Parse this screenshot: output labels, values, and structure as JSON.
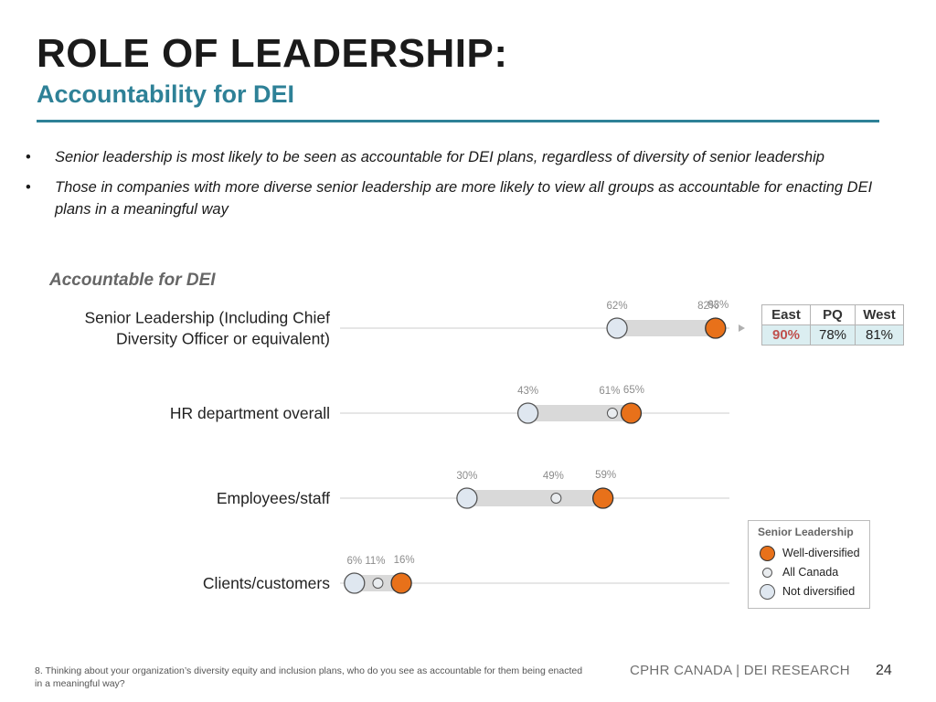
{
  "header": {
    "title": "ROLE OF LEADERSHIP:",
    "subtitle": "Accountability for DEI"
  },
  "bullets": [
    "Senior leadership is most likely to be seen as accountable for DEI plans, regardless of diversity of senior leadership",
    "Those in companies with more diverse senior leadership are more likely to view all groups as accountable for enacting DEI plans in a meaningful way"
  ],
  "colors": {
    "title": "#1a1a1a",
    "accent": "#2e8197",
    "well_diversified": "#e8711a",
    "not_diversified": "#dfe7f0",
    "all_canada": "#e9ecef",
    "range_bar": "#d9d9d9",
    "axis_line": "#cccccc",
    "highlight": "#c0504d",
    "table_fill": "#dbeef1"
  },
  "chart_data": {
    "type": "dumbbell",
    "title": "Accountable for DEI",
    "xlabel": "",
    "ylabel": "",
    "xlim": [
      0,
      100
    ],
    "unit": "%",
    "categories": [
      "Senior Leadership (Including Chief Diversity Officer or equivalent)",
      "HR department overall",
      "Employees/staff",
      "Clients/customers"
    ],
    "category_lines": [
      [
        "Senior Leadership (Including Chief",
        "Diversity Officer or equivalent)"
      ],
      [
        "HR department overall"
      ],
      [
        "Employees/staff"
      ],
      [
        "Clients/customers"
      ]
    ],
    "series": [
      {
        "key": "not",
        "name": "Not diversified",
        "values": [
          62,
          43,
          30,
          6
        ],
        "labels": [
          "62%",
          "43%",
          "30%",
          "6%"
        ]
      },
      {
        "key": "all",
        "name": "All Canada",
        "values": [
          82,
          61,
          49,
          11
        ],
        "labels": [
          "82%",
          "61%",
          "49%",
          "11%"
        ]
      },
      {
        "key": "well",
        "name": "Well-diversified",
        "values": [
          83,
          65,
          59,
          16
        ],
        "labels": [
          "83%",
          "65%",
          "59%",
          "16%"
        ]
      }
    ],
    "legend": {
      "title": "Senior Leadership",
      "position": "bottom-right",
      "items": [
        "Well-diversified",
        "All Canada",
        "Not diversified"
      ]
    },
    "regional_table": {
      "headers": [
        "East",
        "PQ",
        "West"
      ],
      "values": [
        "90%",
        "78%",
        "81%"
      ],
      "highlight": "East"
    }
  },
  "footer": {
    "footnote": "8. Thinking about your organization’s diversity equity and inclusion plans, who do you see as accountable for them being enacted in a meaningful way?",
    "brand": "CPHR CANADA | DEI RESEARCH",
    "page": "24"
  }
}
